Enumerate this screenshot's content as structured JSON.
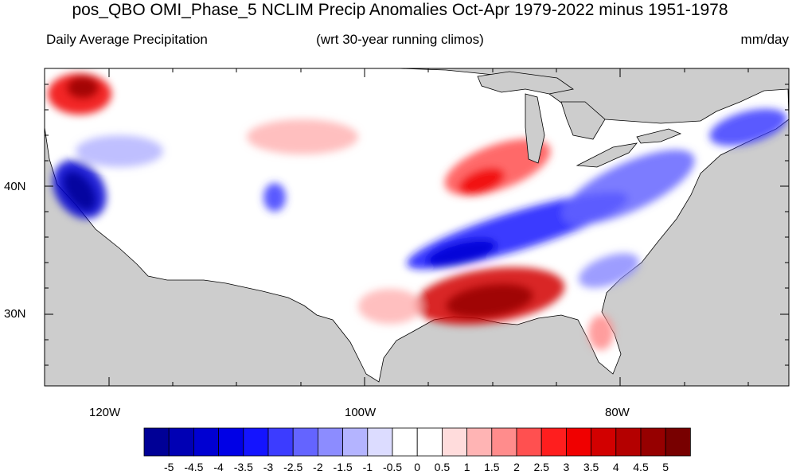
{
  "title": "pos_QBO OMI_Phase_5 NCLIM Precip Anomalies Oct-Apr 1979-2022 minus 1951-1978",
  "subtitle_left": "Daily Average Precipitation",
  "subtitle_center": "(wrt 30-year running climos)",
  "subtitle_right": "mm/day",
  "lat_labels": [
    "40N",
    "30N"
  ],
  "lon_labels": [
    "120W",
    "100W",
    "80W"
  ],
  "colorbar": {
    "labels": [
      "-5",
      "-4.5",
      "-4",
      "-3.5",
      "-3",
      "-2.5",
      "-2",
      "-1.5",
      "-1",
      "-0.5",
      "0",
      "0.5",
      "1",
      "1.5",
      "2",
      "2.5",
      "3",
      "3.5",
      "4",
      "4.5",
      "5"
    ],
    "colors": [
      "#000096",
      "#0000b4",
      "#0000d2",
      "#0000e6",
      "#1414ff",
      "#3c3cff",
      "#6464ff",
      "#8c8cff",
      "#b4b4ff",
      "#dcdcff",
      "#ffffff",
      "#ffffff",
      "#ffdcdc",
      "#ffb4b4",
      "#ff8c8c",
      "#ff5050",
      "#ff1e1e",
      "#f00000",
      "#d20000",
      "#b40000",
      "#960000",
      "#780000"
    ]
  },
  "map": {
    "missing_color": "#cdcdcd",
    "land_color": "#ffffff",
    "anomaly_features": [
      {
        "name": "pacific-northwest-wet",
        "value": 3.0
      },
      {
        "name": "california-dry",
        "value": -4.0
      },
      {
        "name": "great-basin-dry",
        "value": -1.0
      },
      {
        "name": "colorado-dry",
        "value": -2.5
      },
      {
        "name": "northern-plains-wet",
        "value": 1.0
      },
      {
        "name": "midwest-wet",
        "value": 2.0
      },
      {
        "name": "ohio-valley-dry-band",
        "value": -3.0
      },
      {
        "name": "appalachian-dry",
        "value": -2.0
      },
      {
        "name": "new-england-dry",
        "value": -2.5
      },
      {
        "name": "gulf-coast-wet",
        "value": 3.5
      },
      {
        "name": "texas-wet",
        "value": 1.0
      },
      {
        "name": "florida-wet",
        "value": 1.5
      },
      {
        "name": "southeast-dry",
        "value": -1.5
      }
    ]
  }
}
